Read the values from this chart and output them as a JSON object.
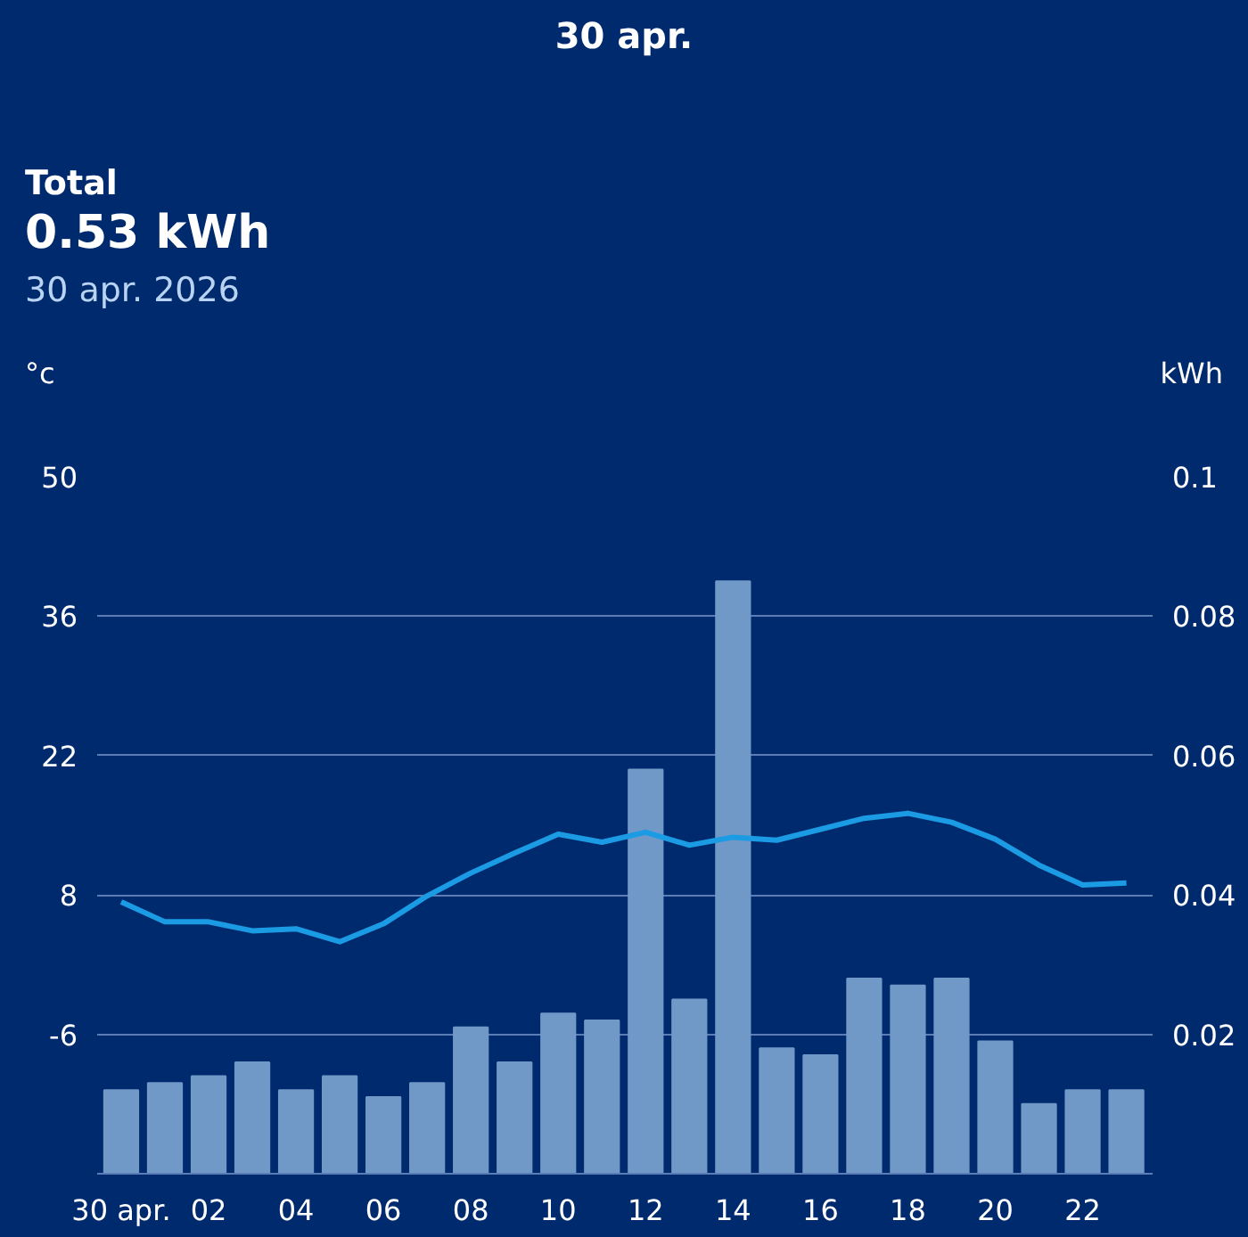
{
  "chart_data": {
    "type": "bar",
    "title": "30 apr.",
    "subtitle": "Total",
    "annotations": [
      "0.53 kWh",
      "30 apr. 2026"
    ],
    "ylabel": "°c",
    "y2label": "kWh",
    "categories": [
      "30 apr.",
      null,
      "02",
      null,
      "04",
      null,
      "06",
      null,
      "08",
      null,
      "10",
      null,
      "12",
      null,
      "14",
      null,
      "16",
      null,
      "18",
      null,
      "20",
      null,
      "22",
      null
    ],
    "series": [
      {
        "axis": "y2",
        "color": "#7199c8",
        "values": [
          0.012,
          0.013,
          0.014,
          0.016,
          0.012,
          0.014,
          0.011,
          0.013,
          0.021,
          0.016,
          0.023,
          0.022,
          0.058,
          0.025,
          0.085,
          0.018,
          0.017,
          0.028,
          0.027,
          0.028,
          0.019,
          0.01,
          0.012,
          0.012
        ]
      },
      {
        "type": "line",
        "axis": "y",
        "color": "#1b9be3",
        "values": [
          7.3,
          5.3,
          5.3,
          4.4,
          4.6,
          3.3,
          5.1,
          7.9,
          10.2,
          12.2,
          14.1,
          13.3,
          14.3,
          13.0,
          13.8,
          13.5,
          14.6,
          15.7,
          16.2,
          15.3,
          13.6,
          11.0,
          9.0,
          9.2
        ]
      }
    ],
    "ylim": [
      -20,
      50
    ],
    "yticks": [
      -6,
      8,
      22,
      36,
      50
    ],
    "y2lim": [
      0,
      0.1
    ],
    "y2ticks": [
      0.02,
      0.04,
      0.06,
      0.08,
      0.1
    ],
    "grid": "y"
  }
}
